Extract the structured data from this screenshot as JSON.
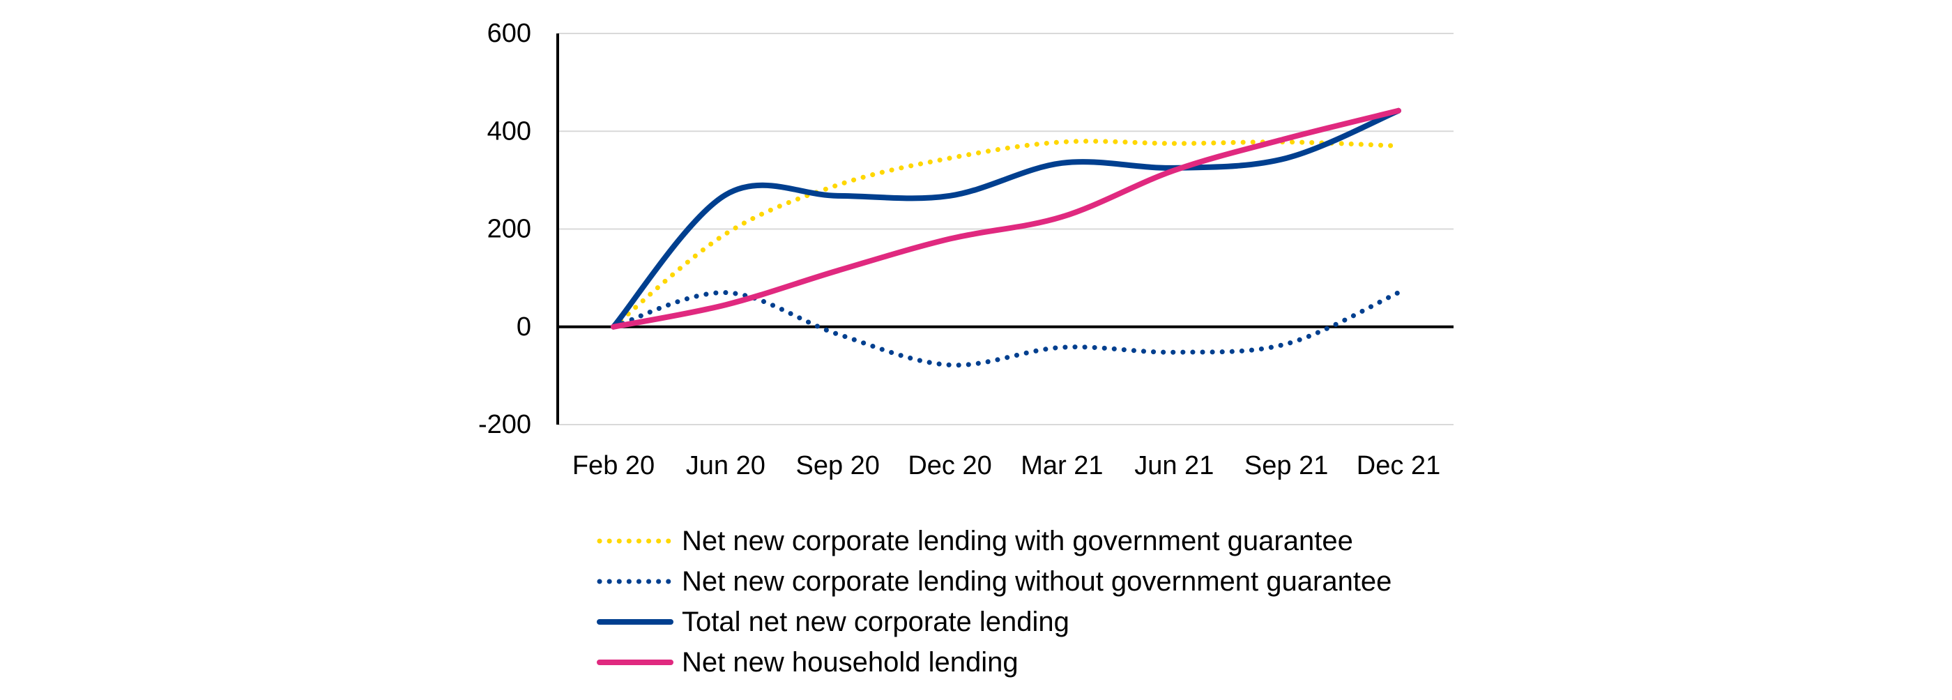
{
  "chart_data": {
    "type": "line",
    "title": "",
    "xlabel": "",
    "ylabel": "",
    "categories": [
      "Feb 20",
      "Jun 20",
      "Sep 20",
      "Dec 20",
      "Mar 21",
      "Jun 21",
      "Sep 21",
      "Dec 21"
    ],
    "ylim": [
      -200,
      600
    ],
    "yticks": [
      -200,
      0,
      200,
      400,
      600
    ],
    "grid": true,
    "legend_position": "bottom",
    "series": [
      {
        "name": "Net new corporate lending with government guarantee",
        "style": "dotted",
        "color": "#FFD700",
        "values": [
          0,
          190,
          290,
          345,
          378,
          375,
          378,
          370
        ]
      },
      {
        "name": "Net new corporate lending without government guarantee",
        "style": "dotted",
        "color": "#003f8f",
        "values": [
          0,
          70,
          -15,
          -78,
          -42,
          -52,
          -35,
          70
        ]
      },
      {
        "name": "Total net new corporate lending",
        "style": "solid",
        "color": "#003f8f",
        "values": [
          0,
          270,
          268,
          268,
          335,
          325,
          345,
          442
        ]
      },
      {
        "name": "Net new household lending",
        "style": "solid",
        "color": "#e0297f",
        "values": [
          0,
          45,
          115,
          180,
          225,
          320,
          385,
          442
        ]
      }
    ]
  }
}
